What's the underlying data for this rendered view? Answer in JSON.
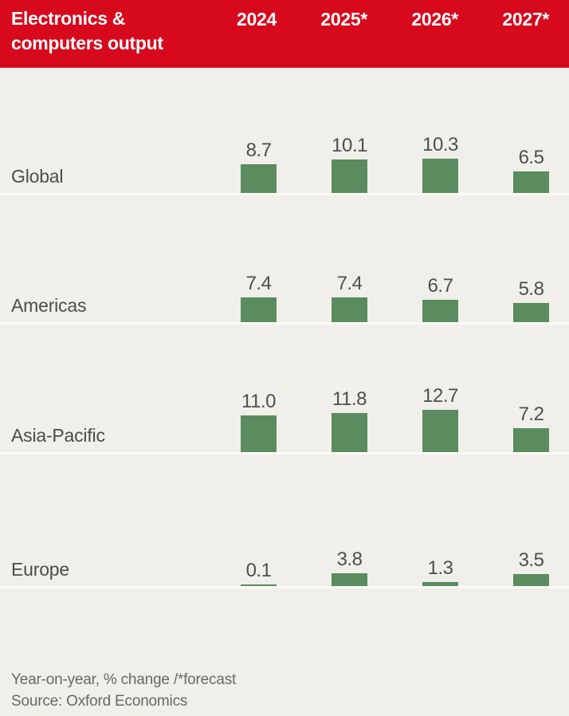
{
  "chart_data": {
    "type": "bar",
    "title": "Electronics & computers output",
    "categories": [
      "2024",
      "2025*",
      "2026*",
      "2027*"
    ],
    "series": [
      {
        "name": "Global",
        "values": [
          8.7,
          10.1,
          10.3,
          6.5
        ]
      },
      {
        "name": "Americas",
        "values": [
          7.4,
          7.4,
          6.7,
          5.8
        ]
      },
      {
        "name": "Asia-Pacific",
        "values": [
          11.0,
          11.8,
          12.7,
          7.2
        ]
      },
      {
        "name": "Europe",
        "values": [
          0.1,
          3.8,
          1.3,
          3.5
        ]
      }
    ],
    "value_labels_shown": true,
    "ylim": [
      0,
      13
    ],
    "grid": "off",
    "legend": "none",
    "footnote": "Year-on-year, % change /*forecast",
    "source": "Source: Oxford Economics",
    "colors": {
      "bar": "#5a8c5f",
      "header_bg": "#d7091c",
      "header_text": "#ffffff",
      "background": "#f1efe9",
      "region_label_text": "#4c4c49",
      "value_label_text": "#4d4e50",
      "footer_text": "#67686b",
      "row_separator": "#fbfaf6"
    }
  }
}
